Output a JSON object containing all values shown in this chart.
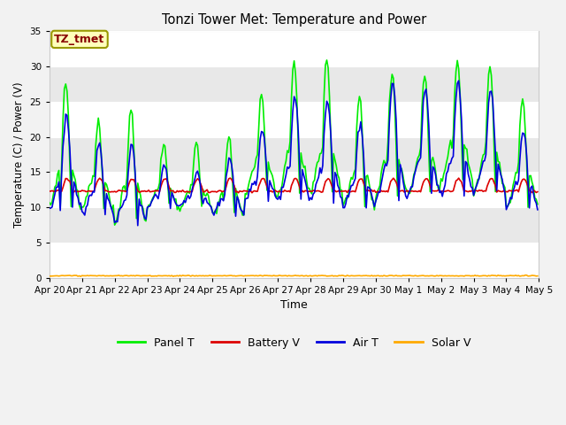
{
  "title": "Tonzi Tower Met: Temperature and Power",
  "xlabel": "Time",
  "ylabel": "Temperature (C) / Power (V)",
  "ylim": [
    0,
    35
  ],
  "yticks": [
    0,
    5,
    10,
    15,
    20,
    25,
    30,
    35
  ],
  "x_tick_labels": [
    "Apr 20",
    "Apr 21",
    "Apr 22",
    "Apr 23",
    "Apr 24",
    "Apr 25",
    "Apr 26",
    "Apr 27",
    "Apr 28",
    "Apr 29",
    "Apr 30",
    "May 1",
    "May 2",
    "May 3",
    "May 4",
    "May 5"
  ],
  "fig_bg": "#f2f2f2",
  "plot_bg": "#e8e8e8",
  "panel_t_color": "#00ee00",
  "battery_v_color": "#dd0000",
  "air_t_color": "#0000dd",
  "solar_v_color": "#ffaa00",
  "annotation_text": "TZ_tmet",
  "annotation_fg": "#880000",
  "annotation_bg": "#ffffbb",
  "annotation_edge": "#999900",
  "line_width": 1.2,
  "grid_color": "#ffffff",
  "n_days": 15,
  "hours_per_day": 24
}
